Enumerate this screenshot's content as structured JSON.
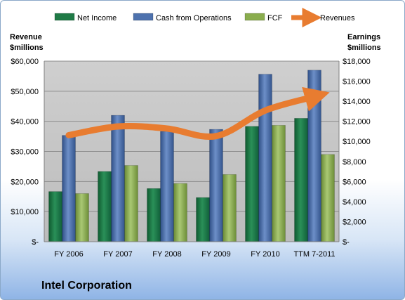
{
  "company_name": "Intel Corporation",
  "left_axis_title": [
    "Revenue",
    "$millions"
  ],
  "right_axis_title": [
    "Earnings",
    "$millions"
  ],
  "colors": {
    "net_income": "#1f7a46",
    "cash_from_operations": "#4e72ae",
    "fcf": "#8aad4e",
    "revenues": "#e87c30",
    "plot_background": "#c4c4c4"
  },
  "chart_data": {
    "type": "bar",
    "categories": [
      "FY 2006",
      "FY 2007",
      "FY 2008",
      "FY 2009",
      "FY 2010",
      "TTM 7-2011"
    ],
    "series": [
      {
        "name": "Net Income",
        "axis": "right",
        "values": [
          5000,
          7000,
          5300,
          4400,
          11500,
          12300
        ]
      },
      {
        "name": "Cash from Operations",
        "axis": "right",
        "values": [
          10600,
          12600,
          11000,
          11200,
          16700,
          17100
        ]
      },
      {
        "name": "FCF",
        "axis": "right",
        "values": [
          4800,
          7600,
          5800,
          6700,
          11600,
          8700
        ]
      },
      {
        "name": "Revenues",
        "type": "line",
        "axis": "left",
        "values": [
          35400,
          38300,
          37600,
          35100,
          43600,
          48200
        ]
      }
    ],
    "left_axis": {
      "ylim": [
        0,
        60000
      ],
      "ticks": [
        "$-",
        "$10,000",
        "$20,000",
        "$30,000",
        "$40,000",
        "$50,000",
        "$60,000"
      ]
    },
    "right_axis": {
      "ylim": [
        0,
        18000
      ],
      "ticks": [
        "$-",
        "$2,000",
        "$4,000",
        "$6,000",
        "$8,000",
        "$10,000",
        "$12,000",
        "$14,000",
        "$16,000",
        "$18,000"
      ]
    },
    "grid": true,
    "legend_position": "top"
  }
}
